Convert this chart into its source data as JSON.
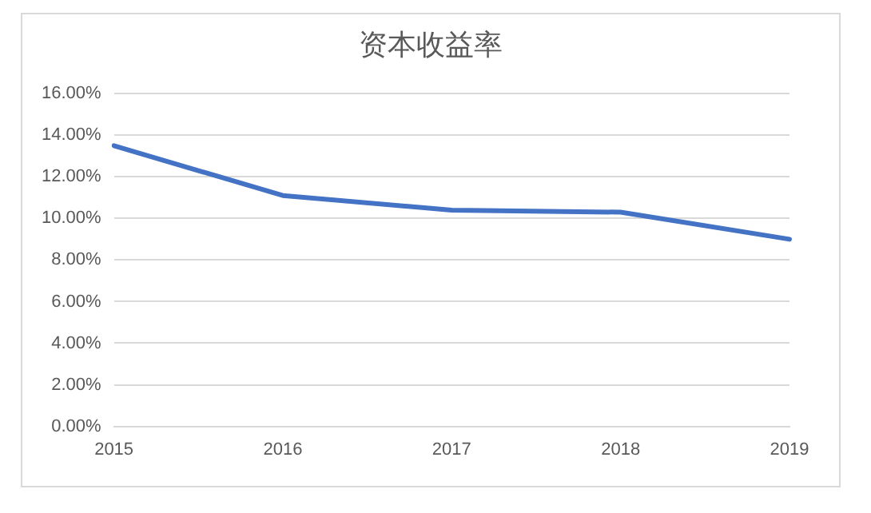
{
  "chart_data": {
    "type": "line",
    "title": "资本收益率",
    "categories": [
      "2015",
      "2016",
      "2017",
      "2018",
      "2019"
    ],
    "series": [
      {
        "color": "#4472c4",
        "values": [
          13.5,
          11.1,
          10.4,
          10.3,
          9.0
        ]
      }
    ],
    "ylim": [
      0,
      16
    ],
    "yticks": [
      {
        "value": 0,
        "label": "0.00%"
      },
      {
        "value": 2,
        "label": "2.00%"
      },
      {
        "value": 4,
        "label": "4.00%"
      },
      {
        "value": 6,
        "label": "6.00%"
      },
      {
        "value": 8,
        "label": "8.00%"
      },
      {
        "value": 10,
        "label": "10.00%"
      },
      {
        "value": 12,
        "label": "12.00%"
      },
      {
        "value": 14,
        "label": "14.00%"
      },
      {
        "value": 16,
        "label": "16.00%"
      }
    ],
    "grid": "y",
    "legend": false,
    "marker": "none",
    "line_style": "solid"
  }
}
